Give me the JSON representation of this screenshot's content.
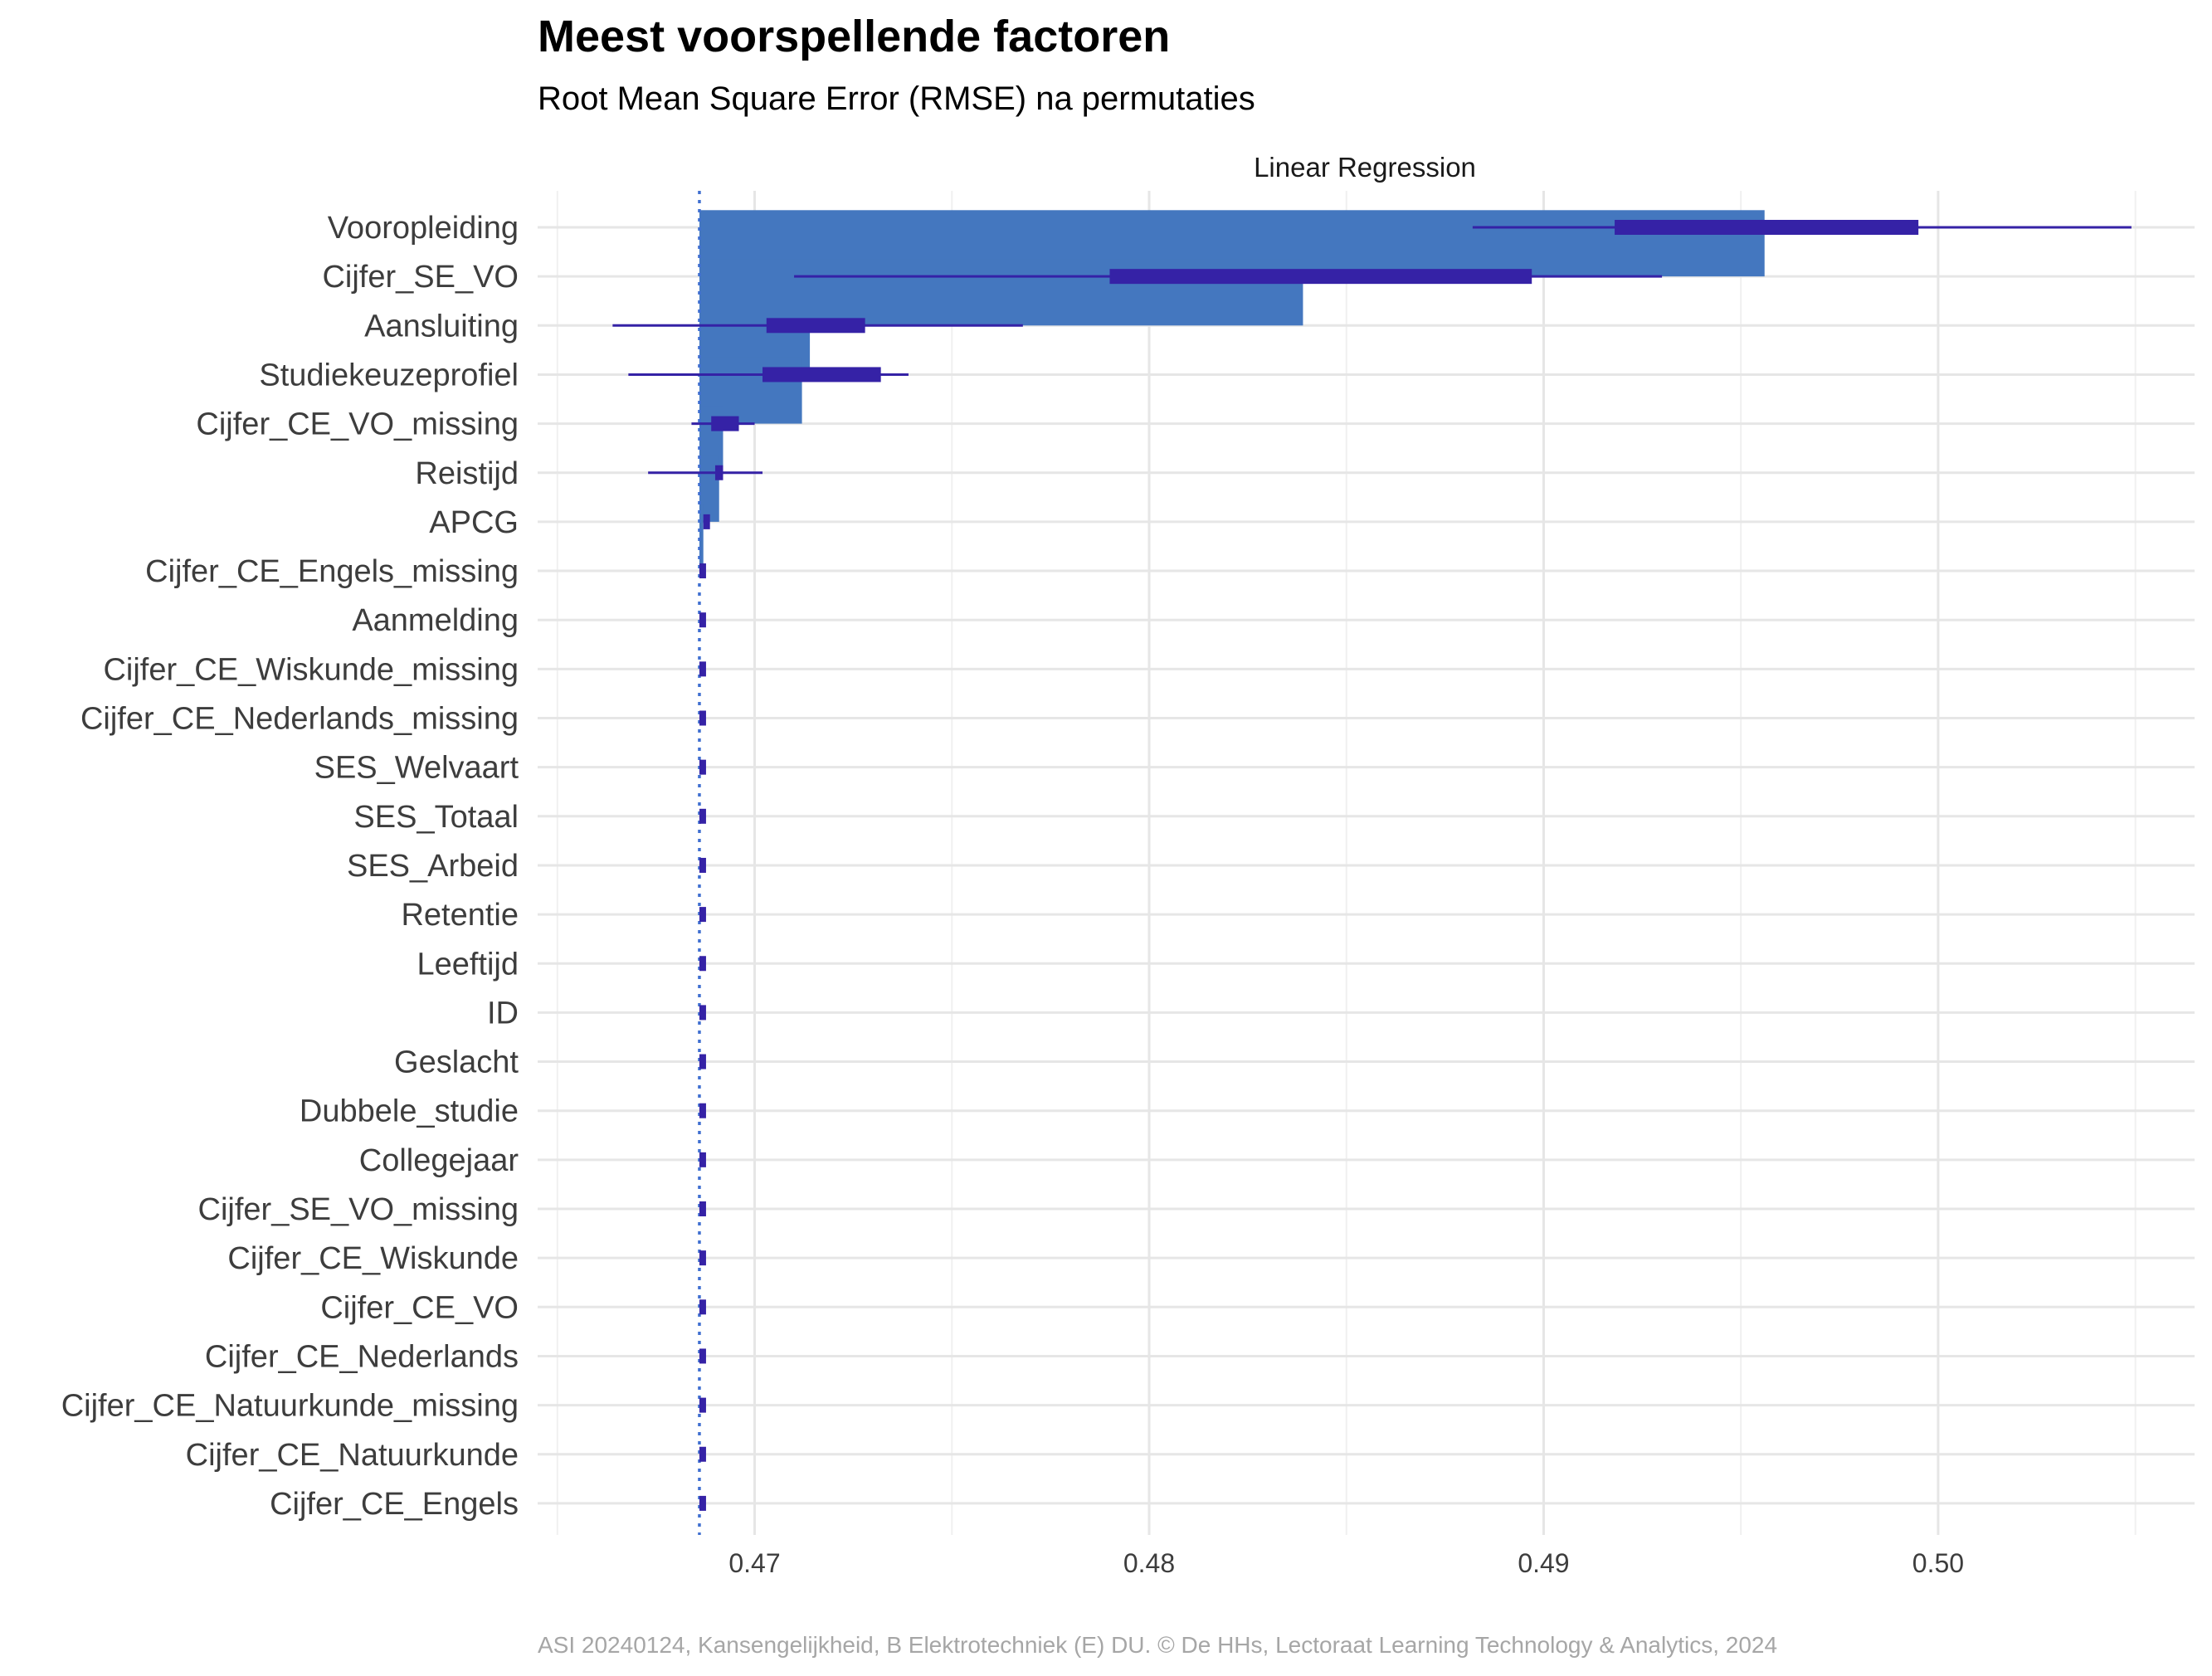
{
  "title": "Meest voorspellende factoren",
  "subtitle": "Root Mean Square Error (RMSE) na permutaties",
  "caption": "ASI 20240124, Kansengelijkheid, B Elektrotechniek (E) DU. © De HHs, Lectoraat Learning Technology & Analytics, 2024",
  "colors": {
    "bar": "#4477bf",
    "boxplot": "#3522a6",
    "baseline": "#3f6fd0",
    "grid": "#e6e6e6"
  },
  "chart_data": {
    "type": "bar",
    "facet": "Linear Regression",
    "orientation": "horizontal",
    "xlim": [
      0.4645,
      0.5065
    ],
    "x_ticks": [
      0.47,
      0.48,
      0.49,
      0.5
    ],
    "x_tick_labels": [
      "0.47",
      "0.48",
      "0.49",
      "0.50"
    ],
    "baseline_rmse": 0.4686,
    "grid": true,
    "categories": [
      "Vooropleiding",
      "Cijfer_SE_VO",
      "Aansluiting",
      "Studiekeuzeprofiel",
      "Cijfer_CE_VO_missing",
      "Reistijd",
      "APCG",
      "Cijfer_CE_Engels_missing",
      "Aanmelding",
      "Cijfer_CE_Wiskunde_missing",
      "Cijfer_CE_Nederlands_missing",
      "SES_Welvaart",
      "SES_Totaal",
      "SES_Arbeid",
      "Retentie",
      "Leeftijd",
      "ID",
      "Geslacht",
      "Dubbele_studie",
      "Collegejaar",
      "Cijfer_SE_VO_missing",
      "Cijfer_CE_Wiskunde",
      "Cijfer_CE_VO",
      "Cijfer_CE_Nederlands",
      "Cijfer_CE_Natuurkunde_missing",
      "Cijfer_CE_Natuurkunde",
      "Cijfer_CE_Engels"
    ],
    "bar_values": [
      0.4956,
      0.4839,
      0.4714,
      0.4712,
      0.4692,
      0.4691,
      0.4687,
      0.4686,
      0.4686,
      0.4686,
      0.4686,
      0.4686,
      0.4686,
      0.4686,
      0.4686,
      0.4686,
      0.4686,
      0.4686,
      0.4686,
      0.4686,
      0.4686,
      0.4686,
      0.4686,
      0.4686,
      0.4686,
      0.4686,
      0.4686
    ],
    "boxplots": [
      {
        "min": 0.4882,
        "q1": 0.4918,
        "q3": 0.4995,
        "max": 0.5049
      },
      {
        "min": 0.471,
        "q1": 0.479,
        "q3": 0.4897,
        "max": 0.493
      },
      {
        "min": 0.4664,
        "q1": 0.4703,
        "q3": 0.4728,
        "max": 0.4768
      },
      {
        "min": 0.4668,
        "q1": 0.4702,
        "q3": 0.4732,
        "max": 0.4739
      },
      {
        "min": 0.4684,
        "q1": 0.4689,
        "q3": 0.4696,
        "max": 0.47
      },
      {
        "min": 0.4673,
        "q1": 0.469,
        "q3": 0.4692,
        "max": 0.4702
      },
      {
        "min": 0.4687,
        "q1": 0.4687,
        "q3": 0.4688,
        "max": 0.4688
      },
      {
        "min": 0.4686,
        "q1": 0.4686,
        "q3": 0.4687,
        "max": 0.4687
      },
      {
        "min": 0.4686,
        "q1": 0.4686,
        "q3": 0.4687,
        "max": 0.4687
      },
      {
        "min": 0.4686,
        "q1": 0.4686,
        "q3": 0.4687,
        "max": 0.4687
      },
      {
        "min": 0.4686,
        "q1": 0.4686,
        "q3": 0.4687,
        "max": 0.4687
      },
      {
        "min": 0.4686,
        "q1": 0.4686,
        "q3": 0.4687,
        "max": 0.4687
      },
      {
        "min": 0.4686,
        "q1": 0.4686,
        "q3": 0.4687,
        "max": 0.4687
      },
      {
        "min": 0.4686,
        "q1": 0.4686,
        "q3": 0.4687,
        "max": 0.4687
      },
      {
        "min": 0.4686,
        "q1": 0.4686,
        "q3": 0.4687,
        "max": 0.4687
      },
      {
        "min": 0.4686,
        "q1": 0.4686,
        "q3": 0.4687,
        "max": 0.4687
      },
      {
        "min": 0.4686,
        "q1": 0.4686,
        "q3": 0.4687,
        "max": 0.4687
      },
      {
        "min": 0.4686,
        "q1": 0.4686,
        "q3": 0.4687,
        "max": 0.4687
      },
      {
        "min": 0.4686,
        "q1": 0.4686,
        "q3": 0.4687,
        "max": 0.4687
      },
      {
        "min": 0.4686,
        "q1": 0.4686,
        "q3": 0.4687,
        "max": 0.4687
      },
      {
        "min": 0.4686,
        "q1": 0.4686,
        "q3": 0.4687,
        "max": 0.4687
      },
      {
        "min": 0.4686,
        "q1": 0.4686,
        "q3": 0.4687,
        "max": 0.4687
      },
      {
        "min": 0.4686,
        "q1": 0.4686,
        "q3": 0.4687,
        "max": 0.4687
      },
      {
        "min": 0.4686,
        "q1": 0.4686,
        "q3": 0.4687,
        "max": 0.4687
      },
      {
        "min": 0.4686,
        "q1": 0.4686,
        "q3": 0.4687,
        "max": 0.4687
      },
      {
        "min": 0.4686,
        "q1": 0.4686,
        "q3": 0.4687,
        "max": 0.4687
      },
      {
        "min": 0.4686,
        "q1": 0.4686,
        "q3": 0.4687,
        "max": 0.4687
      }
    ]
  }
}
